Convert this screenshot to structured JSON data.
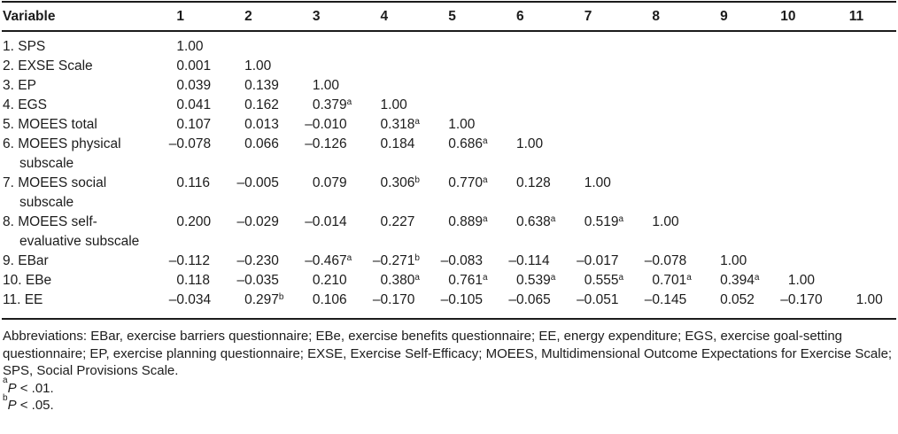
{
  "table": {
    "header": {
      "variable_label": "Variable",
      "columns": [
        "1",
        "2",
        "3",
        "4",
        "5",
        "6",
        "7",
        "8",
        "9",
        "10",
        "11"
      ]
    },
    "rows": [
      {
        "label": "1. SPS",
        "values": [
          "1.00"
        ]
      },
      {
        "label": "2. EXSE Scale",
        "values": [
          "0.001",
          "1.00"
        ]
      },
      {
        "label": "3. EP",
        "values": [
          "0.039",
          "0.139",
          "1.00"
        ]
      },
      {
        "label": "4. EGS",
        "values": [
          "0.041",
          "0.162",
          "0.379^a",
          "1.00"
        ]
      },
      {
        "label": "5. MOEES total",
        "values": [
          "0.107",
          "0.013",
          "–0.010",
          "0.318^a",
          "1.00"
        ]
      },
      {
        "label": "6. MOEES physical subscale",
        "values": [
          "–0.078",
          "0.066",
          "–0.126",
          "0.184",
          "0.686^a",
          "1.00"
        ]
      },
      {
        "label": "7. MOEES social subscale",
        "values": [
          "0.116",
          "–0.005",
          "0.079",
          "0.306^b",
          "0.770^a",
          "0.128",
          "1.00"
        ]
      },
      {
        "label": "8. MOEES self-evaluative subscale",
        "values": [
          "0.200",
          "–0.029",
          "–0.014",
          "0.227",
          "0.889^a",
          "0.638^a",
          "0.519^a",
          "1.00"
        ]
      },
      {
        "label": "9. EBar",
        "values": [
          "–0.112",
          "–0.230",
          "–0.467^a",
          "–0.271^b",
          "–0.083",
          "–0.114",
          "–0.017",
          "–0.078",
          "1.00"
        ]
      },
      {
        "label": "10. EBe",
        "values": [
          "0.118",
          "–0.035",
          "0.210",
          "0.380^a",
          "0.761^a",
          "0.539^a",
          "0.555^a",
          "0.701^a",
          "0.394^a",
          "1.00"
        ]
      },
      {
        "label": "11. EE",
        "values": [
          "–0.034",
          "0.297^b",
          "0.106",
          "–0.170",
          "–0.105",
          "–0.065",
          "–0.051",
          "–0.145",
          "0.052",
          "–0.170",
          "1.00"
        ]
      }
    ]
  },
  "footnotes": {
    "abbreviations": "Abbreviations: EBar, exercise barriers questionnaire; EBe, exercise benefits questionnaire; EE, energy expenditure; EGS, exercise goal-setting questionnaire; EP, exercise planning questionnaire; EXSE, Exercise Self-Efficacy; MOEES, Multidimensional Outcome Expectations for Exercise Scale; SPS, Social Provisions Scale.",
    "note_a": {
      "marker": "a",
      "stat": "P",
      "text": " < .01."
    },
    "note_b": {
      "marker": "b",
      "stat": "P",
      "text": " < .05."
    }
  },
  "colors": {
    "text": "#1c1c1c",
    "rule": "#1c1c1c",
    "background": "#ffffff"
  }
}
